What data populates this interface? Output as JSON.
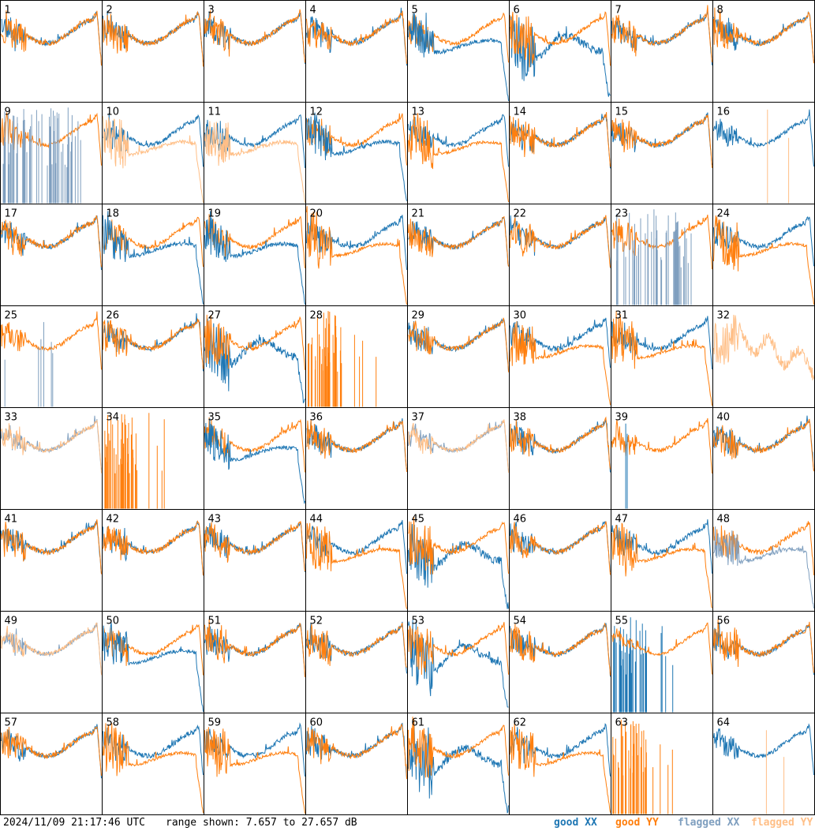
{
  "chart_data": {
    "type": "line",
    "layout": "small-multiples 8x8",
    "panels": [
      "1",
      "2",
      "3",
      "4",
      "5",
      "6",
      "7",
      "8",
      "9",
      "10",
      "11",
      "12",
      "13",
      "14",
      "15",
      "16",
      "17",
      "18",
      "19",
      "20",
      "21",
      "22",
      "23",
      "24",
      "25",
      "26",
      "27",
      "28",
      "29",
      "30",
      "31",
      "32",
      "33",
      "34",
      "35",
      "36",
      "37",
      "38",
      "39",
      "40",
      "41",
      "42",
      "43",
      "44",
      "45",
      "46",
      "47",
      "48",
      "49",
      "50",
      "51",
      "52",
      "53",
      "54",
      "55",
      "56",
      "57",
      "58",
      "59",
      "60",
      "61",
      "62",
      "63",
      "64"
    ],
    "ylim": [
      7.657,
      27.657
    ],
    "yunit": "dB",
    "series": [
      {
        "name": "good XX",
        "color": "#1f77b4"
      },
      {
        "name": "good YY",
        "color": "#ff7f0e"
      },
      {
        "name": "flagged XX",
        "color": "#7f9fbf"
      },
      {
        "name": "flagged YY",
        "color": "#ffbf87"
      }
    ],
    "grid": false,
    "legend_placement": "bottom-right"
  },
  "footer": {
    "timestamp": "2024/11/09 21:17:46 UTC",
    "range_text": "range shown: 7.657 to 27.657 dB"
  }
}
